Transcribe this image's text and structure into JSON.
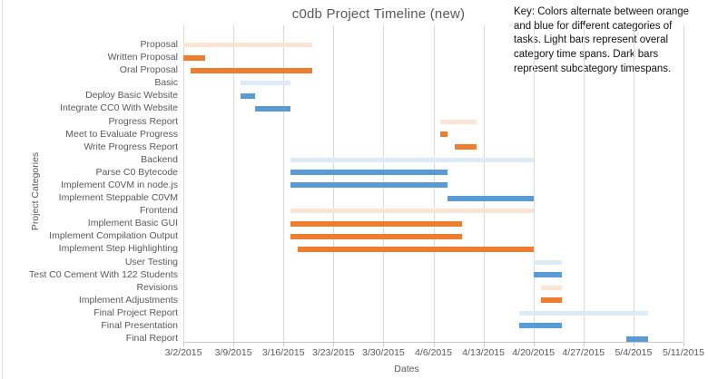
{
  "title": "c0db Project Timeline (new)",
  "key_note": "Key: Colors alternate between orange\nand blue for different categories of\ntasks. Light bars represent overal\ncategory time spans. Dark bars\nrepresent subcategory timespans.",
  "colors": {
    "light_orange": "#fbe3d6",
    "dark_orange": "#ed7d31",
    "light_blue": "#ddebf7",
    "dark_blue": "#5b9bd5",
    "gridline": "#d9d9d9",
    "axis_text": "#595959"
  },
  "chart_data": {
    "type": "bar",
    "variant": "gantt",
    "title": "c0db Project Timeline (new)",
    "xlabel": "Dates",
    "ylabel": "Project Categories",
    "grid": true,
    "x_ticks": [
      "3/2/2015",
      "3/9/2015",
      "3/16/2015",
      "3/23/2015",
      "3/30/2015",
      "4/6/2015",
      "4/13/2015",
      "4/20/2015",
      "4/27/2015",
      "5/4/2015",
      "5/11/2015"
    ],
    "x_range_days": [
      0,
      70
    ],
    "tick_interval_days": 7,
    "tasks": [
      {
        "label": "Proposal",
        "start": "3/2/2015",
        "end": "3/20/2015",
        "start_day": 0,
        "end_day": 18,
        "style": "light_orange"
      },
      {
        "label": "Written Proposal",
        "start": "3/2/2015",
        "end": "3/5/2015",
        "start_day": 0,
        "end_day": 3,
        "style": "dark_orange"
      },
      {
        "label": "Oral Proposal",
        "start": "3/3/2015",
        "end": "3/20/2015",
        "start_day": 1,
        "end_day": 18,
        "style": "dark_orange"
      },
      {
        "label": "Basic",
        "start": "3/10/2015",
        "end": "3/17/2015",
        "start_day": 8,
        "end_day": 15,
        "style": "light_blue"
      },
      {
        "label": "Deploy Basic Website",
        "start": "3/10/2015",
        "end": "3/12/2015",
        "start_day": 8,
        "end_day": 10,
        "style": "dark_blue"
      },
      {
        "label": "Integrate CC0 With Website",
        "start": "3/12/2015",
        "end": "3/17/2015",
        "start_day": 10,
        "end_day": 15,
        "style": "dark_blue"
      },
      {
        "label": "Progress Report",
        "start": "4/7/2015",
        "end": "4/12/2015",
        "start_day": 36,
        "end_day": 41,
        "style": "light_orange"
      },
      {
        "label": "Meet to Evaluate Progress",
        "start": "4/7/2015",
        "end": "4/8/2015",
        "start_day": 36,
        "end_day": 37,
        "style": "dark_orange"
      },
      {
        "label": "Write Progress Report",
        "start": "4/9/2015",
        "end": "4/12/2015",
        "start_day": 38,
        "end_day": 41,
        "style": "dark_orange"
      },
      {
        "label": "Backend",
        "start": "3/17/2015",
        "end": "4/20/2015",
        "start_day": 15,
        "end_day": 49,
        "style": "light_blue"
      },
      {
        "label": "Parse C0 Bytecode",
        "start": "3/17/2015",
        "end": "4/8/2015",
        "start_day": 15,
        "end_day": 37,
        "style": "dark_blue"
      },
      {
        "label": "Implement C0VM in node.js",
        "start": "3/17/2015",
        "end": "4/8/2015",
        "start_day": 15,
        "end_day": 37,
        "style": "dark_blue"
      },
      {
        "label": "Implement Steppable C0VM",
        "start": "4/8/2015",
        "end": "4/20/2015",
        "start_day": 37,
        "end_day": 49,
        "style": "dark_blue"
      },
      {
        "label": "Frontend",
        "start": "3/17/2015",
        "end": "4/20/2015",
        "start_day": 15,
        "end_day": 49,
        "style": "light_orange"
      },
      {
        "label": "Implement Basic GUI",
        "start": "3/17/2015",
        "end": "4/10/2015",
        "start_day": 15,
        "end_day": 39,
        "style": "dark_orange"
      },
      {
        "label": "Implement Compilation Output",
        "start": "3/17/2015",
        "end": "4/10/2015",
        "start_day": 15,
        "end_day": 39,
        "style": "dark_orange"
      },
      {
        "label": "Implement Step Highlighting",
        "start": "3/18/2015",
        "end": "4/20/2015",
        "start_day": 16,
        "end_day": 49,
        "style": "dark_orange"
      },
      {
        "label": "User Testing",
        "start": "4/20/2015",
        "end": "4/24/2015",
        "start_day": 49,
        "end_day": 53,
        "style": "light_blue"
      },
      {
        "label": "Test C0 Cement With 122 Students",
        "start": "4/20/2015",
        "end": "4/24/2015",
        "start_day": 49,
        "end_day": 53,
        "style": "dark_blue"
      },
      {
        "label": "Revisions",
        "start": "4/21/2015",
        "end": "4/24/2015",
        "start_day": 50,
        "end_day": 53,
        "style": "light_orange"
      },
      {
        "label": "Implement Adjustments",
        "start": "4/21/2015",
        "end": "4/24/2015",
        "start_day": 50,
        "end_day": 53,
        "style": "dark_orange"
      },
      {
        "label": "Final Project Report",
        "start": "4/18/2015",
        "end": "5/6/2015",
        "start_day": 47,
        "end_day": 65,
        "style": "light_blue"
      },
      {
        "label": "Final Presentation",
        "start": "4/18/2015",
        "end": "4/24/2015",
        "start_day": 47,
        "end_day": 53,
        "style": "dark_blue"
      },
      {
        "label": "Final Report",
        "start": "5/3/2015",
        "end": "5/6/2015",
        "start_day": 62,
        "end_day": 65,
        "style": "dark_blue"
      }
    ]
  }
}
